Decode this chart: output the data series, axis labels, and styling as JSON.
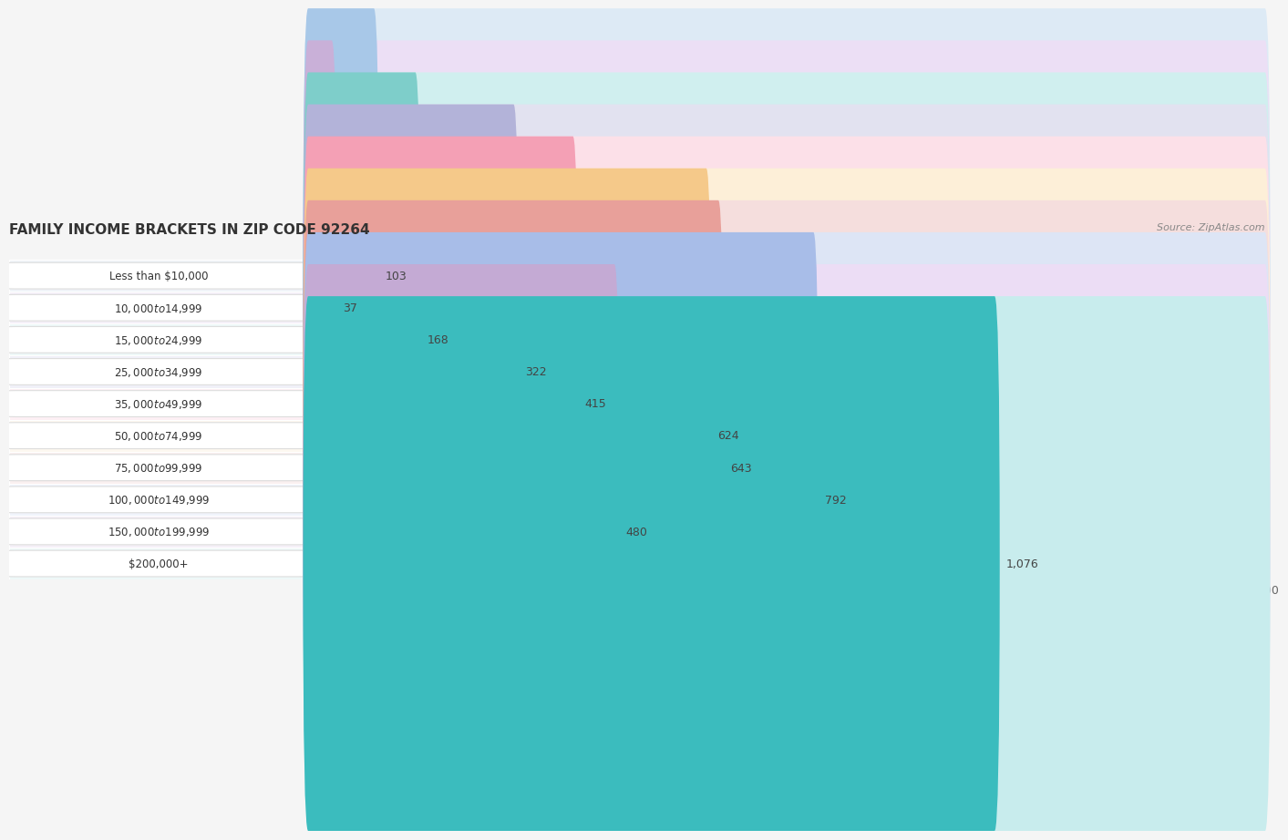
{
  "title": "FAMILY INCOME BRACKETS IN ZIP CODE 92264",
  "source": "Source: ZipAtlas.com",
  "categories": [
    "Less than $10,000",
    "$10,000 to $14,999",
    "$15,000 to $24,999",
    "$25,000 to $34,999",
    "$35,000 to $49,999",
    "$50,000 to $74,999",
    "$75,000 to $99,999",
    "$100,000 to $149,999",
    "$150,000 to $199,999",
    "$200,000+"
  ],
  "values": [
    103,
    37,
    168,
    322,
    415,
    624,
    643,
    792,
    480,
    1076
  ],
  "bar_colors": [
    "#a8c8e8",
    "#c9b0d8",
    "#7ececa",
    "#b3b3d9",
    "#f4a0b5",
    "#f5c98a",
    "#e8a09a",
    "#a8bde8",
    "#c4aad4",
    "#3bbcbe"
  ],
  "bar_bg_colors": [
    "#ddeaf5",
    "#ecdff5",
    "#d0efef",
    "#e2e2f0",
    "#fce0e8",
    "#fdefd8",
    "#f5dedd",
    "#dde5f5",
    "#ecddf5",
    "#c8eced"
  ],
  "row_bg_colors": [
    "#f0f4f8",
    "#f5f0f8",
    "#eef8f8",
    "#f0f0f8",
    "#fdf0f4",
    "#fdf8f0",
    "#faf0f0",
    "#f0f4fc",
    "#f5f0f8",
    "#eef8f8"
  ],
  "xlim": [
    0,
    1500
  ],
  "xticks": [
    0,
    750,
    1500
  ],
  "value_labels": [
    "103",
    "37",
    "168",
    "322",
    "415",
    "624",
    "643",
    "792",
    "480",
    "1,076"
  ],
  "background_color": "#f5f5f5",
  "title_fontsize": 11,
  "source_fontsize": 8
}
